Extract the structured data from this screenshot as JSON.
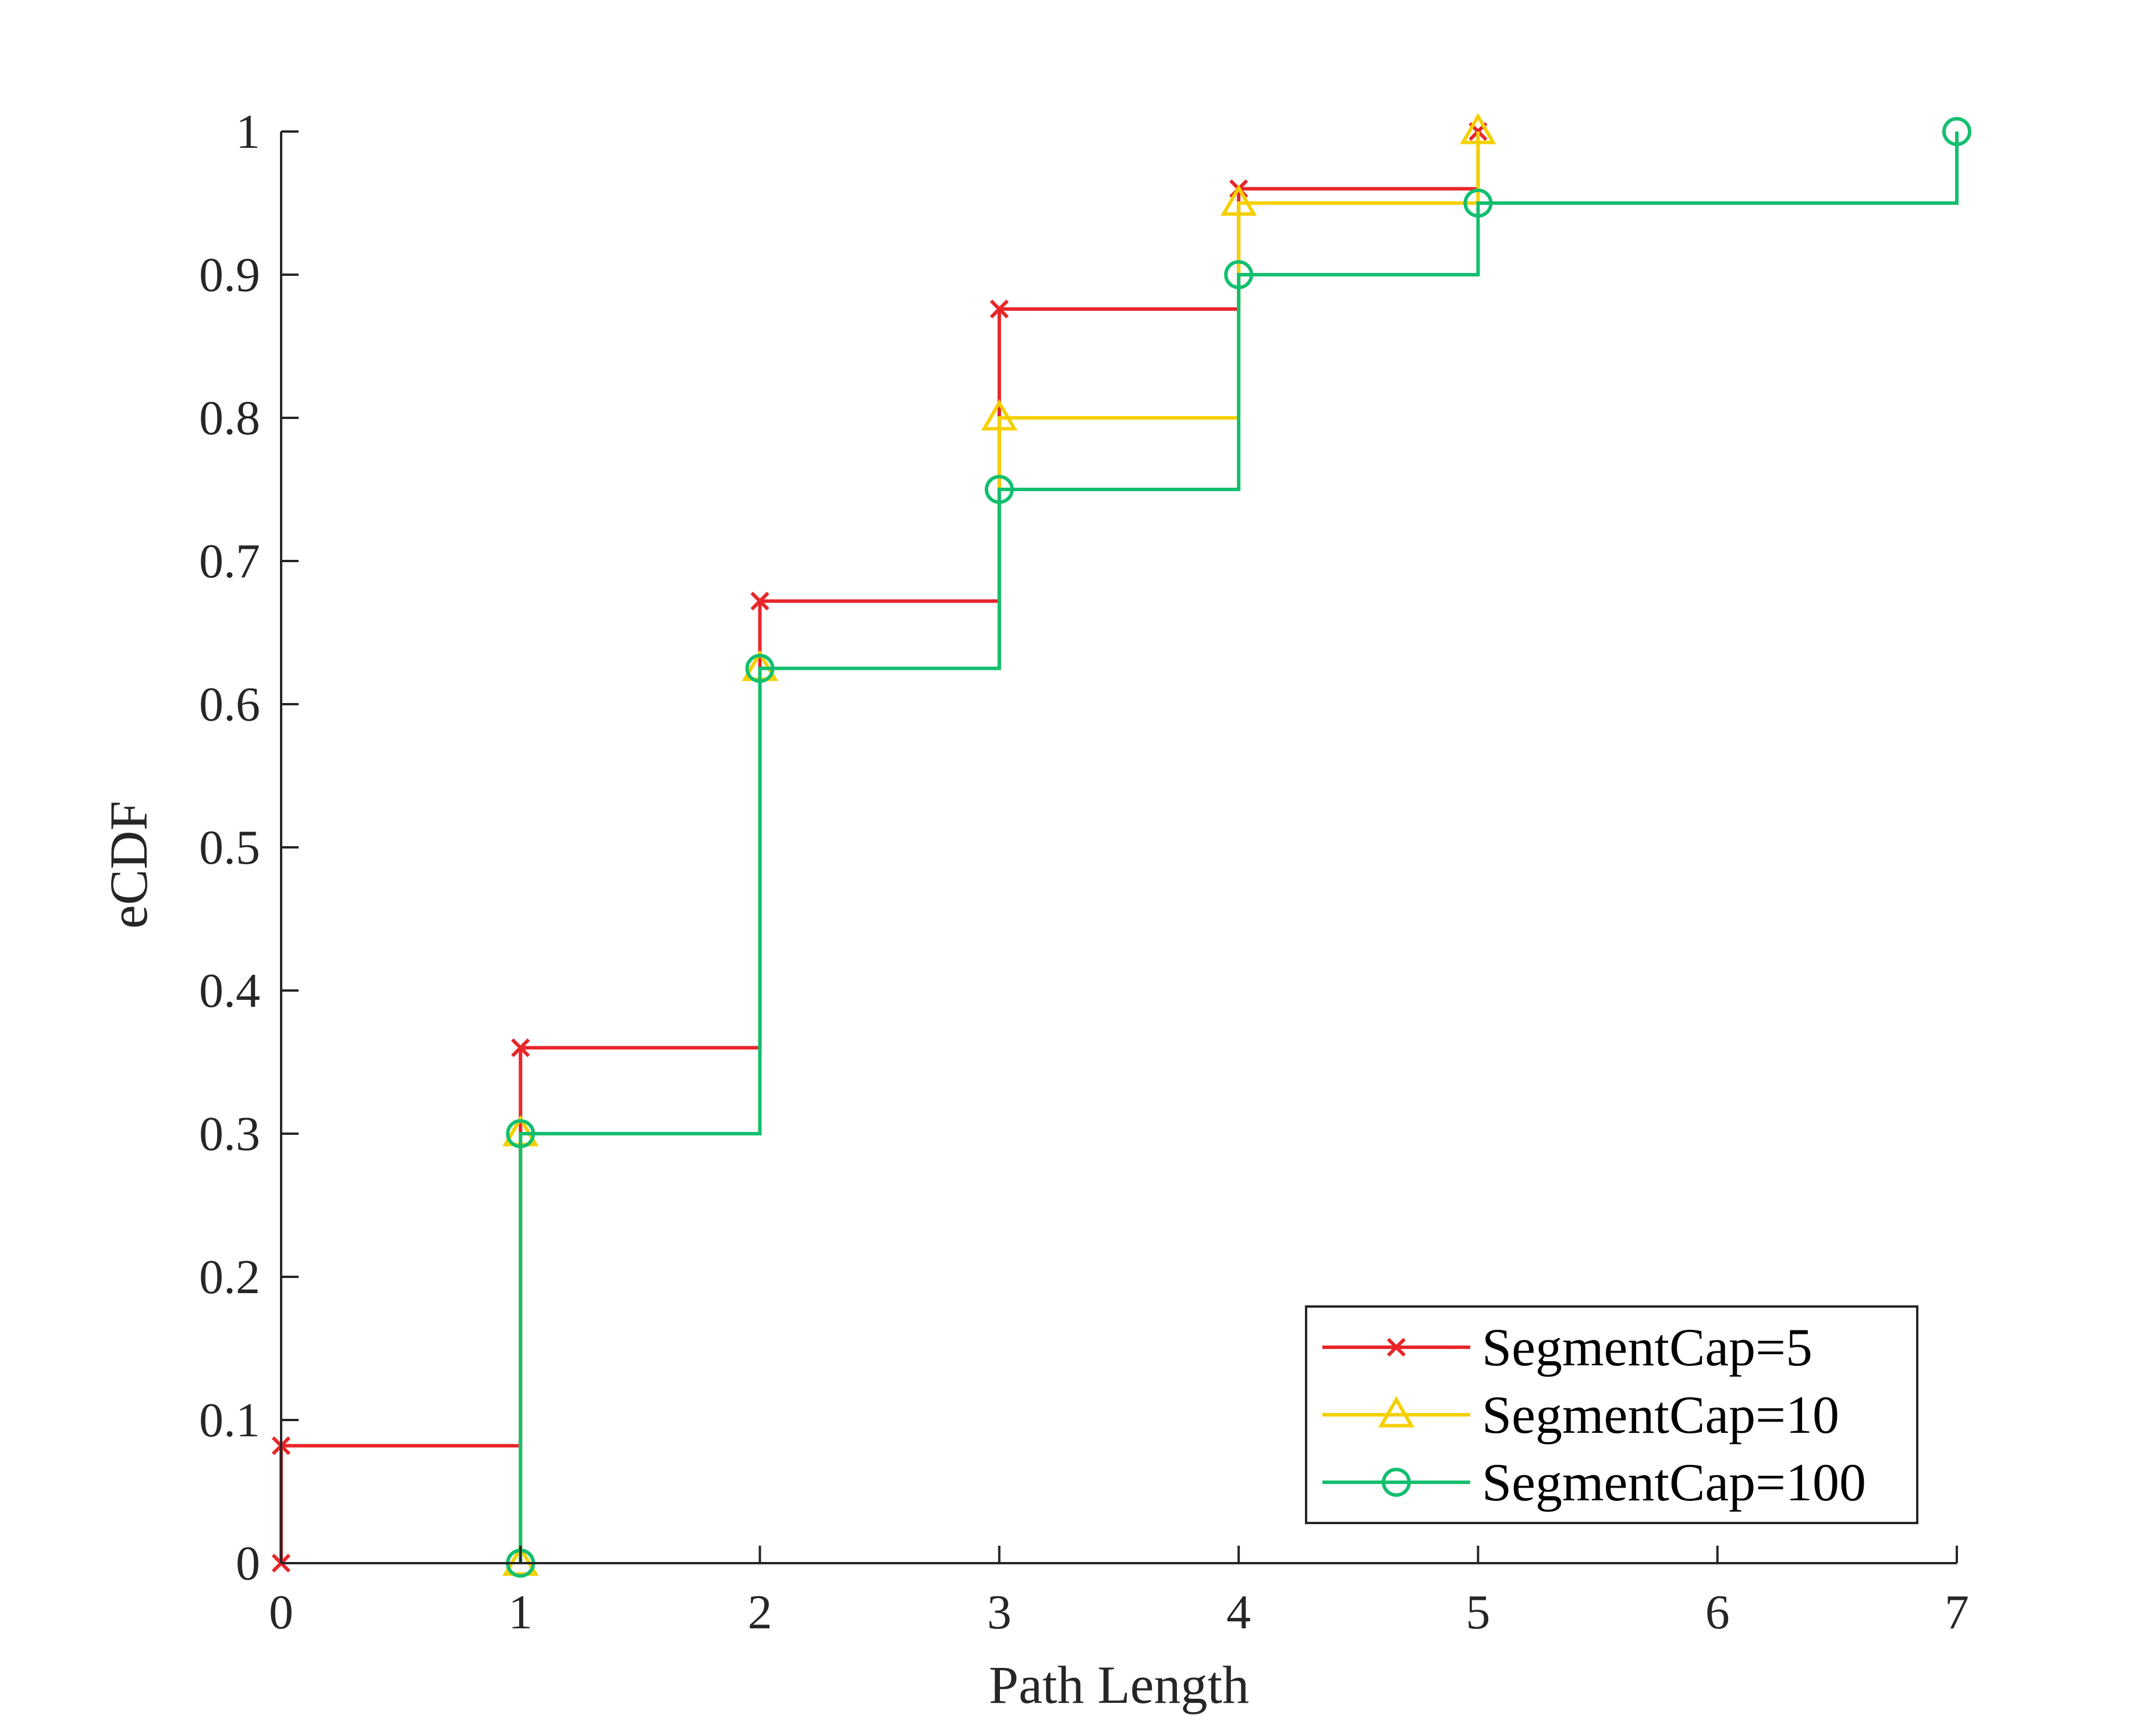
{
  "chart_data": {
    "type": "line",
    "subtype": "step-ecdf",
    "title": "",
    "xlabel": "Path Length",
    "ylabel": "eCDF",
    "xlim": [
      0,
      7
    ],
    "ylim": [
      0,
      1
    ],
    "xticks": [
      0,
      1,
      2,
      3,
      4,
      5,
      6,
      7
    ],
    "xtick_labels": [
      "0",
      "1",
      "2",
      "3",
      "4",
      "5",
      "6",
      "7"
    ],
    "yticks": [
      0,
      0.1,
      0.2,
      0.3,
      0.4,
      0.5,
      0.6,
      0.7,
      0.8,
      0.9,
      1
    ],
    "ytick_labels": [
      "0",
      "0.1",
      "0.2",
      "0.3",
      "0.4",
      "0.5",
      "0.6",
      "0.7",
      "0.8",
      "0.9",
      "1"
    ],
    "grid": false,
    "legend_position": "bottom-right",
    "series": [
      {
        "name": "SegmentCap=5",
        "color": "#e8262a",
        "marker": "x-mark",
        "x": [
          0,
          0,
          1,
          2,
          3,
          4,
          5
        ],
        "y": [
          0,
          0.082,
          0.36,
          0.672,
          0.876,
          0.96,
          1.0
        ]
      },
      {
        "name": "SegmentCap=10",
        "color": "#f5d000",
        "marker": "triangle",
        "x": [
          1,
          1,
          2,
          3,
          4,
          5
        ],
        "y": [
          0,
          0.3,
          0.625,
          0.8,
          0.95,
          1.0
        ]
      },
      {
        "name": "SegmentCap=100",
        "color": "#13bf6e",
        "marker": "circle",
        "x": [
          1,
          1,
          2,
          3,
          4,
          5,
          7
        ],
        "y": [
          0,
          0.3,
          0.625,
          0.75,
          0.9,
          0.95,
          1.0
        ]
      }
    ]
  }
}
